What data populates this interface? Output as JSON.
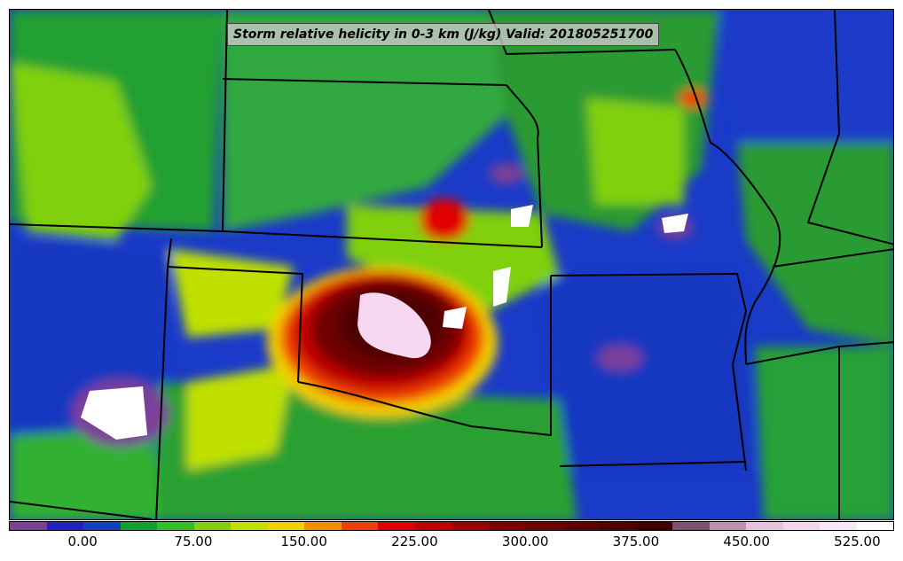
{
  "map": {
    "title": "Storm relative helicity in 0-3 km (J/kg) Valid: 201805251700",
    "variable": "Storm relative helicity 0-3 km",
    "units": "J/kg",
    "valid_time": "201805251700"
  },
  "colorbar": {
    "levels": [
      -50,
      -25,
      0,
      25,
      50,
      75,
      100,
      125,
      150,
      175,
      200,
      225,
      250,
      275,
      300,
      325,
      350,
      375,
      400,
      425,
      450,
      475,
      500,
      525,
      550
    ],
    "colors": [
      "#7b3f98",
      "#2020c0",
      "#1040c0",
      "#10a030",
      "#30c020",
      "#80d010",
      "#c0e000",
      "#f0d000",
      "#f09000",
      "#f04000",
      "#e00000",
      "#c00000",
      "#a00000",
      "#800000",
      "#700000",
      "#600000",
      "#500000",
      "#400000",
      "#805070",
      "#c090b0",
      "#e8c0e0",
      "#f0d8f0",
      "#f8e8f8",
      "#ffffff"
    ],
    "tick_labels": [
      "0.00",
      "75.00",
      "150.00",
      "225.00",
      "300.00",
      "375.00",
      "450.00",
      "525.00"
    ],
    "tick_values": [
      0,
      75,
      150,
      225,
      300,
      375,
      450,
      525
    ]
  }
}
